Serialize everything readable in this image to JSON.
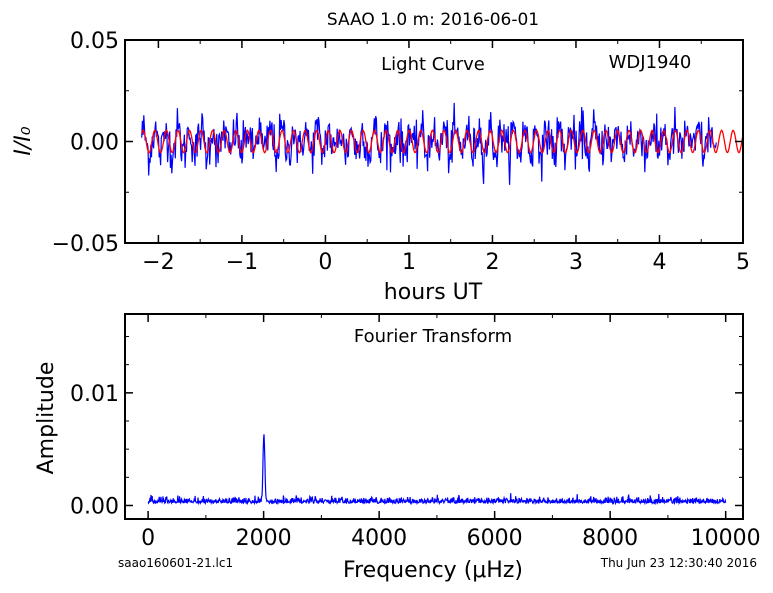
{
  "title": "SAAO 1.0 m:  2016-06-01",
  "footer": {
    "left": "saao160601-21.lc1",
    "right": "Thu Jun 23 12:30:40 2016"
  },
  "chart_data": [
    {
      "type": "line",
      "annotations": [
        "Light Curve",
        "WDJ1940"
      ],
      "xlabel": "hours UT",
      "ylabel": "I/I₀",
      "xlim": [
        -2.4,
        5.0
      ],
      "ylim": [
        -0.05,
        0.05
      ],
      "xticks": [
        -2,
        -1,
        0,
        1,
        2,
        3,
        4,
        5
      ],
      "xtick_labels": [
        "−2",
        "−1",
        "0",
        "1",
        "2",
        "3",
        "4",
        "5"
      ],
      "yticks": [
        -0.05,
        0.0,
        0.05
      ],
      "ytick_labels": [
        "−0.05",
        "0.00",
        "0.05"
      ],
      "series": [
        {
          "color": "#0000ff",
          "x_range": [
            -2.2,
            4.68
          ],
          "amplitude_range": [
            -0.023,
            0.019
          ],
          "kind": "observed light curve"
        },
        {
          "color": "#ff0000",
          "x_range": [
            -2.2,
            5.0
          ],
          "amplitude": 0.0055,
          "period_hours": 0.1385,
          "kind": "sinusoid fit"
        }
      ]
    },
    {
      "type": "line",
      "annotations": [
        "Fourier Transform"
      ],
      "xlabel": "Frequency (μHz)",
      "ylabel": "Amplitude",
      "xlim": [
        -400,
        10300
      ],
      "ylim": [
        -0.0012,
        0.017
      ],
      "xticks": [
        0,
        2000,
        4000,
        6000,
        8000,
        10000
      ],
      "xtick_labels": [
        "0",
        "2000",
        "4000",
        "6000",
        "8000",
        "10000"
      ],
      "yticks": [
        0.0,
        0.01
      ],
      "ytick_labels": [
        "0.00",
        "0.01"
      ],
      "series": [
        {
          "color": "#0000ff",
          "x_range": [
            0,
            10000
          ],
          "noise_level": 0.0004,
          "peak_frequency": 2005,
          "peak_amplitude": 0.006
        }
      ]
    }
  ]
}
